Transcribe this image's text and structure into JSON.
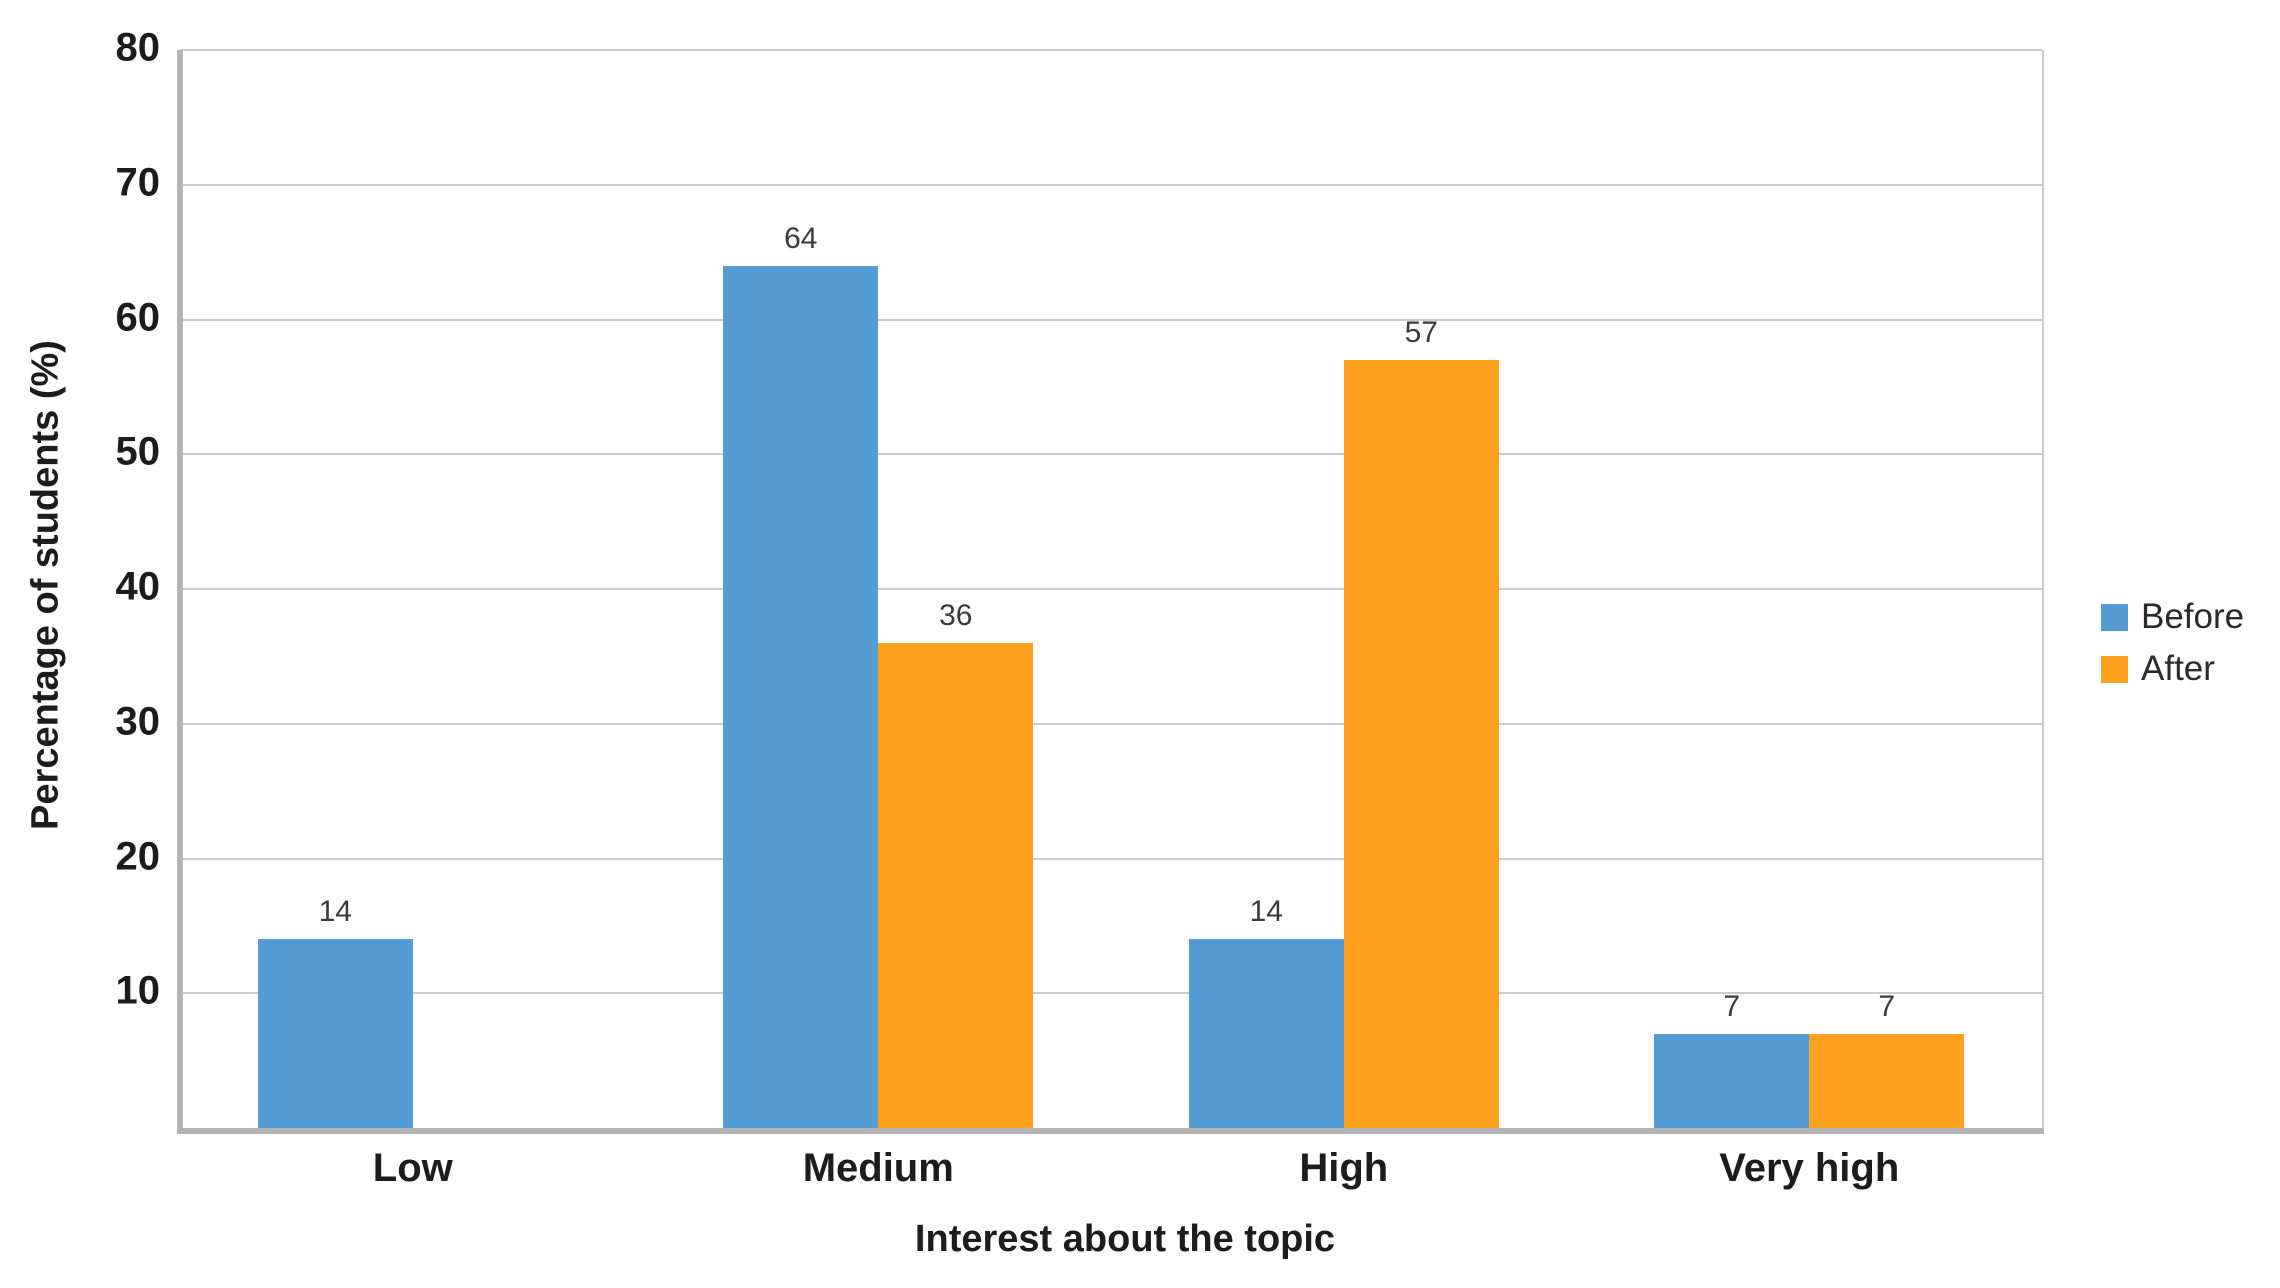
{
  "chart_data": {
    "type": "bar",
    "title": "",
    "categories": [
      "Low",
      "Medium",
      "High",
      "Very high"
    ],
    "series": [
      {
        "name": "Before",
        "color": "#559CD5",
        "values": [
          14,
          64,
          14,
          7
        ]
      },
      {
        "name": "After",
        "color": "#FFA01E",
        "values": [
          null,
          36,
          57,
          7
        ]
      }
    ],
    "xlabel": "Interest about the topic",
    "ylabel": "Percentage of students (%)",
    "ylim": [
      0,
      80
    ],
    "ytick_step": 10,
    "ytick_labels": [
      "10",
      "20",
      "30",
      "40",
      "50",
      "60",
      "70",
      "80"
    ],
    "grid": true,
    "bar_value_labels_shown": true,
    "legend_position": "right",
    "style": {
      "grid_color": "#CBCBCB",
      "axis_color": "#B3B3B3",
      "tick_label_color": "#1c1c1c",
      "value_label_color": "#3a3a3a",
      "background": "#ffffff"
    }
  }
}
